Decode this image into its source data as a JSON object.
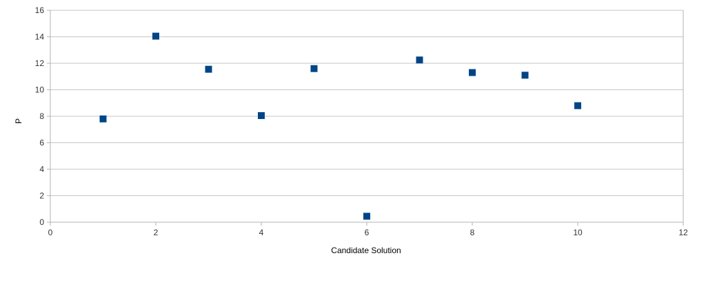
{
  "chart_data": {
    "type": "scatter",
    "title": "",
    "xlabel": "Candidate Solution",
    "ylabel": "P",
    "xlim": [
      0,
      12
    ],
    "ylim": [
      0,
      16
    ],
    "x_ticks": [
      0,
      2,
      4,
      6,
      8,
      10,
      12
    ],
    "y_ticks": [
      0,
      2,
      4,
      6,
      8,
      10,
      12,
      14,
      16
    ],
    "grid": "horizontal",
    "legend": "none",
    "marker": "square",
    "marker_color": "#004586",
    "series": [
      {
        "points": [
          {
            "x": 1,
            "y": 7.8
          },
          {
            "x": 2,
            "y": 14.05
          },
          {
            "x": 3,
            "y": 11.55
          },
          {
            "x": 4,
            "y": 8.05
          },
          {
            "x": 5,
            "y": 11.6
          },
          {
            "x": 6,
            "y": 0.45
          },
          {
            "x": 7,
            "y": 12.25
          },
          {
            "x": 8,
            "y": 11.3
          },
          {
            "x": 9,
            "y": 11.1
          },
          {
            "x": 10,
            "y": 8.8
          }
        ]
      }
    ]
  }
}
